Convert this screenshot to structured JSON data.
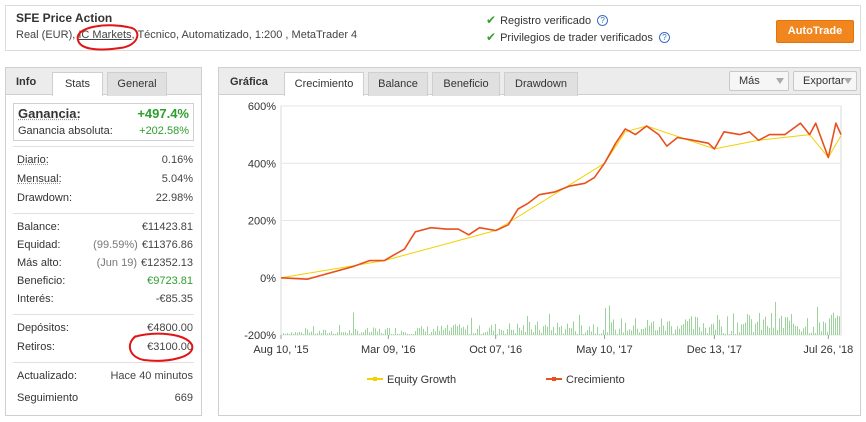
{
  "header": {
    "title": "SFE Price Action",
    "subtitle_prefix": "Real (EUR), ",
    "broker": "IC Markets",
    "subtitle_suffix": ", Técnico, Automatizado, 1:200 , MetaTrader 4",
    "verified": [
      {
        "label": "Registro verificado"
      },
      {
        "label": "Privilegios de trader verificados"
      }
    ],
    "help_glyph": "?",
    "autotrade_label": "AutoTrade"
  },
  "left_panel": {
    "section_label": "Info",
    "tabs": [
      "Stats",
      "General"
    ],
    "gain": {
      "label": "Ganancia:",
      "value": "+497.4%"
    },
    "gain_abs": {
      "label": "Ganancia absoluta:",
      "value": "+202.58%"
    },
    "period_rows": [
      {
        "label": "Diario:",
        "value": "0.16%"
      },
      {
        "label": "Mensual:",
        "value": "5.04%"
      },
      {
        "label": "Drawdown:",
        "value": "22.98%"
      }
    ],
    "balance_rows": [
      {
        "label": "Balance:",
        "note": "",
        "value": "€11423.81"
      },
      {
        "label": "Equidad:",
        "note": "(99.59%)",
        "value": "€11376.86"
      },
      {
        "label": "Más alto:",
        "note": "(Jun 19)",
        "value": "€12352.13"
      },
      {
        "label": "Beneficio:",
        "note": "",
        "value": "€9723.81"
      },
      {
        "label": "Interés:",
        "note": "",
        "value": "-€85.35"
      }
    ],
    "cash_rows": [
      {
        "label": "Depósitos:",
        "value": "€4800.00"
      },
      {
        "label": "Retiros:",
        "value": "€3100.00"
      }
    ],
    "info_rows": [
      {
        "label": "Actualizado:",
        "value": "Hace 40 minutos"
      },
      {
        "label": "Seguimiento",
        "value": "669"
      }
    ]
  },
  "right_panel": {
    "section_label": "Gráfica",
    "tabs": [
      "Crecimiento",
      "Balance",
      "Beneficio",
      "Drawdown"
    ],
    "more_label": "Más",
    "export_label": "Exportar"
  },
  "colors": {
    "growth_line": "#e8501e",
    "equity_line": "#f2d200",
    "volume_bars": "#9cd39c",
    "gain_green": "#2e9e2e",
    "accent_orange": "#f0861d",
    "annotation_red": "#e01515"
  },
  "chart_data": {
    "type": "line",
    "y_ticks": [
      "600%",
      "400%",
      "200%",
      "0%",
      "-200%"
    ],
    "ylim": [
      -200,
      600
    ],
    "x_ticks": [
      "Aug 10, '15",
      "Mar 09, '16",
      "Oct 07, '16",
      "May 10, '17",
      "Dec 13, '17",
      "Jul 26, '18"
    ],
    "xlim": [
      "Aug 10, '15",
      "Aug 20, '18"
    ],
    "grid": true,
    "legend_position": "bottom",
    "series": [
      {
        "name": "Crecimiento",
        "x": [
          "2015-08-10",
          "2015-10-01",
          "2015-11-01",
          "2016-01-01",
          "2016-02-01",
          "2016-03-01",
          "2016-03-20",
          "2016-04-10",
          "2016-05-01",
          "2016-06-01",
          "2016-07-01",
          "2016-07-25",
          "2016-08-15",
          "2016-09-05",
          "2016-10-07",
          "2016-11-01",
          "2016-11-20",
          "2016-12-10",
          "2017-01-01",
          "2017-02-01",
          "2017-03-01",
          "2017-04-01",
          "2017-04-20",
          "2017-05-10",
          "2017-06-01",
          "2017-06-20",
          "2017-07-10",
          "2017-08-01",
          "2017-08-25",
          "2017-09-10",
          "2017-10-01",
          "2017-11-01",
          "2017-12-01",
          "2017-12-13",
          "2018-01-01",
          "2018-02-01",
          "2018-02-20",
          "2018-03-10",
          "2018-04-01",
          "2018-05-01",
          "2018-06-01",
          "2018-06-19",
          "2018-07-01",
          "2018-07-26",
          "2018-08-10",
          "2018-08-20"
        ],
        "y": [
          0,
          -5,
          10,
          40,
          60,
          60,
          80,
          100,
          160,
          175,
          170,
          170,
          150,
          175,
          165,
          185,
          240,
          260,
          290,
          300,
          320,
          330,
          350,
          400,
          470,
          520,
          500,
          530,
          500,
          460,
          490,
          480,
          470,
          450,
          510,
          500,
          510,
          480,
          500,
          500,
          540,
          500,
          540,
          420,
          540,
          500
        ]
      },
      {
        "name": "Equity Growth",
        "x": [
          "2015-08-10",
          "2016-03-01",
          "2016-10-07",
          "2017-05-10",
          "2017-06-20",
          "2017-08-01",
          "2017-12-13",
          "2018-03-10",
          "2018-06-19",
          "2018-07-26",
          "2018-08-20"
        ],
        "y": [
          0,
          60,
          165,
          400,
          510,
          530,
          450,
          480,
          500,
          420,
          497
        ]
      }
    ]
  }
}
